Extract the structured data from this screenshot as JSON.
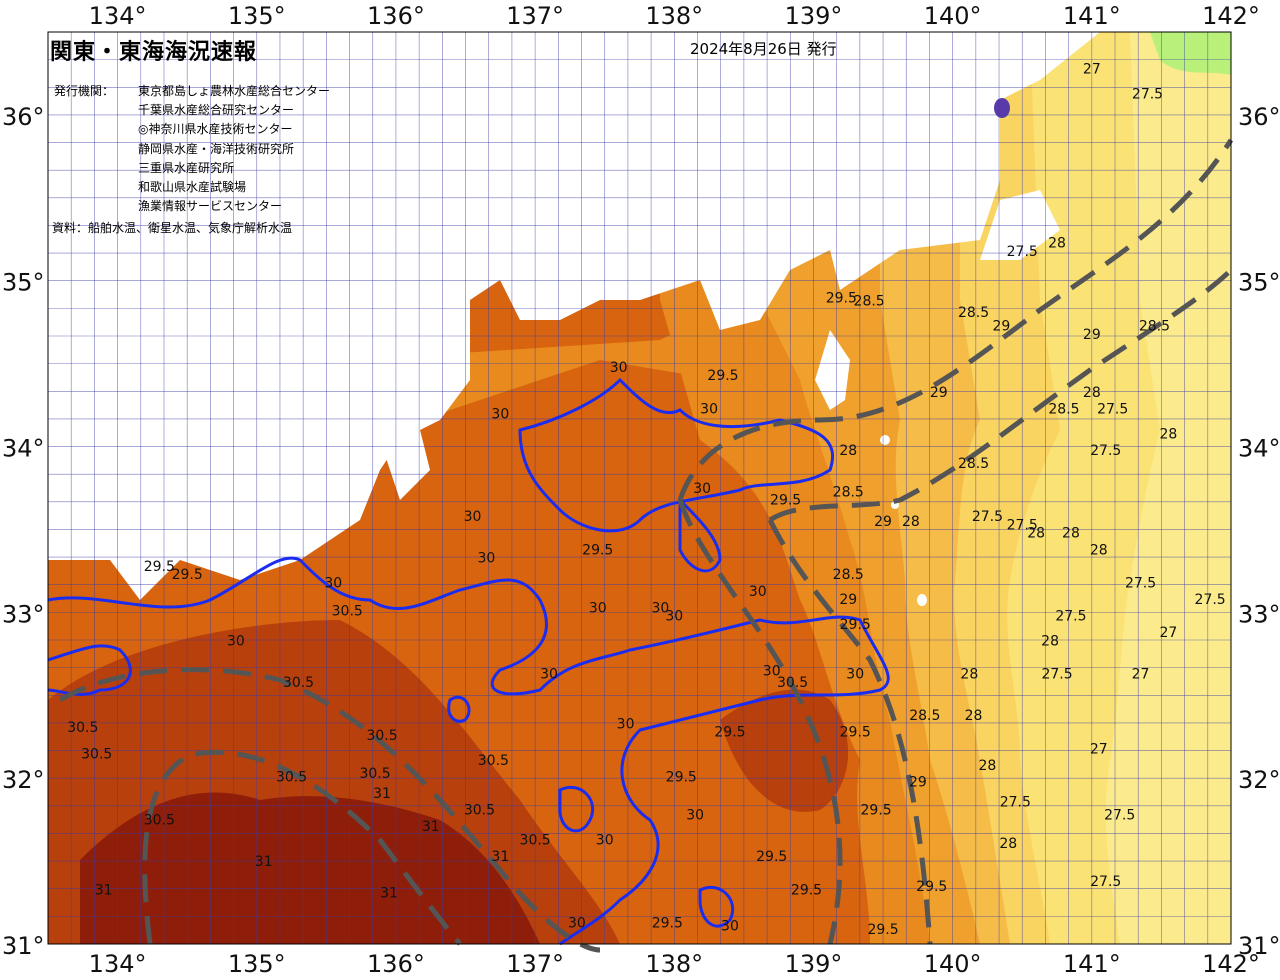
{
  "header": {
    "title": "関東・東海海況速報",
    "issue_date": "2024年8月26日 発行",
    "org_label": "発行機関：",
    "organizations": [
      "東京都島しょ農林水産総合センター",
      "千葉県水産総合研究センター",
      "◎神奈川県水産技術センター",
      "静岡県水産・海洋技術研究所",
      "三重県水産研究所",
      "和歌山県水産試験場",
      "漁業情報サービスセンター"
    ],
    "source": "資料：船舶水温、衛星水温、気象庁解析水温"
  },
  "axes": {
    "lon_labels": [
      "134°",
      "135°",
      "136°",
      "137°",
      "138°",
      "139°",
      "140°",
      "141°",
      "142°"
    ],
    "lat_labels": [
      "36°",
      "35°",
      "34°",
      "33°",
      "32°",
      "31°"
    ]
  },
  "colors": {
    "t31": "#8e1e0a",
    "t305": "#b8400c",
    "t30": "#d8640f",
    "t295": "#e88a1e",
    "t29": "#f0a02c",
    "t285": "#f6bc48",
    "t28": "#f9d460",
    "t275": "#fbe274",
    "t27": "#fbeb8c",
    "green": "#b8f07a",
    "land": "#ffffff",
    "grid": "#3a3aa8",
    "isotherm_30": "#1a2cf0",
    "current_axis": "#555555"
  },
  "isotherm_labels": [
    {
      "t": "29.5",
      "lon": 134.3,
      "lat": 33.25
    },
    {
      "t": "29.5",
      "lon": 134.5,
      "lat": 33.2
    },
    {
      "t": "30",
      "lon": 134.85,
      "lat": 32.8
    },
    {
      "t": "30",
      "lon": 135.55,
      "lat": 33.15
    },
    {
      "t": "30.5",
      "lon": 135.65,
      "lat": 32.98
    },
    {
      "t": "30.5",
      "lon": 135.3,
      "lat": 32.55
    },
    {
      "t": "30.5",
      "lon": 133.75,
      "lat": 32.28
    },
    {
      "t": "30.5",
      "lon": 133.85,
      "lat": 32.12
    },
    {
      "t": "30.5",
      "lon": 134.3,
      "lat": 31.72
    },
    {
      "t": "30.5",
      "lon": 135.25,
      "lat": 31.98
    },
    {
      "t": "30.5",
      "lon": 135.9,
      "lat": 32.23
    },
    {
      "t": "30.5",
      "lon": 135.85,
      "lat": 32.0
    },
    {
      "t": "31",
      "lon": 135.9,
      "lat": 31.88
    },
    {
      "t": "31",
      "lon": 136.25,
      "lat": 31.68
    },
    {
      "t": "31",
      "lon": 135.05,
      "lat": 31.47
    },
    {
      "t": "31",
      "lon": 135.95,
      "lat": 31.28
    },
    {
      "t": "31",
      "lon": 133.9,
      "lat": 31.3
    },
    {
      "t": "30.5",
      "lon": 136.7,
      "lat": 32.08
    },
    {
      "t": "30.5",
      "lon": 136.6,
      "lat": 31.78
    },
    {
      "t": "31",
      "lon": 136.75,
      "lat": 31.5
    },
    {
      "t": "30.5",
      "lon": 137.0,
      "lat": 31.6
    },
    {
      "t": "30",
      "lon": 136.65,
      "lat": 33.3
    },
    {
      "t": "30",
      "lon": 136.55,
      "lat": 33.55
    },
    {
      "t": "30",
      "lon": 137.45,
      "lat": 33.0
    },
    {
      "t": "30",
      "lon": 137.9,
      "lat": 33.0
    },
    {
      "t": "30",
      "lon": 137.1,
      "lat": 32.6
    },
    {
      "t": "29.5",
      "lon": 137.45,
      "lat": 33.35
    },
    {
      "t": "30",
      "lon": 136.75,
      "lat": 34.17
    },
    {
      "t": "30",
      "lon": 137.6,
      "lat": 34.45
    },
    {
      "t": "30",
      "lon": 138.25,
      "lat": 34.2
    },
    {
      "t": "29.5",
      "lon": 138.35,
      "lat": 34.4
    },
    {
      "t": "30",
      "lon": 138.2,
      "lat": 33.72
    },
    {
      "t": "30",
      "lon": 138.6,
      "lat": 33.1
    },
    {
      "t": "30",
      "lon": 138.7,
      "lat": 32.62
    },
    {
      "t": "30.5",
      "lon": 138.85,
      "lat": 32.55
    },
    {
      "t": "30",
      "lon": 139.3,
      "lat": 32.6
    },
    {
      "t": "30",
      "lon": 138.0,
      "lat": 32.95
    },
    {
      "t": "30",
      "lon": 137.65,
      "lat": 32.3
    },
    {
      "t": "29.5",
      "lon": 138.4,
      "lat": 32.25
    },
    {
      "t": "29.5",
      "lon": 138.05,
      "lat": 31.98
    },
    {
      "t": "30",
      "lon": 137.5,
      "lat": 31.6
    },
    {
      "t": "30",
      "lon": 138.15,
      "lat": 31.75
    },
    {
      "t": "29.5",
      "lon": 138.7,
      "lat": 31.5
    },
    {
      "t": "29.5",
      "lon": 138.95,
      "lat": 31.3
    },
    {
      "t": "29.5",
      "lon": 137.95,
      "lat": 31.1
    },
    {
      "t": "30",
      "lon": 137.3,
      "lat": 31.1
    },
    {
      "t": "30",
      "lon": 138.4,
      "lat": 31.08
    },
    {
      "t": "29.5",
      "lon": 139.3,
      "lat": 32.25
    },
    {
      "t": "29.5",
      "lon": 139.45,
      "lat": 31.78
    },
    {
      "t": "29.5",
      "lon": 139.5,
      "lat": 31.06
    },
    {
      "t": "29.5",
      "lon": 139.85,
      "lat": 31.32
    },
    {
      "t": "29",
      "lon": 139.75,
      "lat": 31.95
    },
    {
      "t": "29.5",
      "lon": 138.8,
      "lat": 33.65
    },
    {
      "t": "28.5",
      "lon": 139.25,
      "lat": 33.2
    },
    {
      "t": "29",
      "lon": 139.25,
      "lat": 33.05
    },
    {
      "t": "29.5",
      "lon": 139.3,
      "lat": 32.9
    },
    {
      "t": "28.5",
      "lon": 139.8,
      "lat": 32.35
    },
    {
      "t": "28",
      "lon": 140.12,
      "lat": 32.6
    },
    {
      "t": "28",
      "lon": 140.15,
      "lat": 32.35
    },
    {
      "t": "28",
      "lon": 140.25,
      "lat": 32.05
    },
    {
      "t": "29.5",
      "lon": 139.2,
      "lat": 34.87
    },
    {
      "t": "28.5",
      "lon": 139.4,
      "lat": 34.85
    },
    {
      "t": "29",
      "lon": 139.9,
      "lat": 34.3
    },
    {
      "t": "28.5",
      "lon": 140.15,
      "lat": 34.78
    },
    {
      "t": "29",
      "lon": 140.35,
      "lat": 34.7
    },
    {
      "t": "28",
      "lon": 139.25,
      "lat": 33.95
    },
    {
      "t": "28.5",
      "lon": 139.25,
      "lat": 33.7
    },
    {
      "t": "29",
      "lon": 139.5,
      "lat": 33.52
    },
    {
      "t": "28",
      "lon": 139.7,
      "lat": 33.52
    },
    {
      "t": "28.5",
      "lon": 140.15,
      "lat": 33.87
    },
    {
      "t": "27.5",
      "lon": 140.25,
      "lat": 33.55
    },
    {
      "t": "27.5",
      "lon": 140.5,
      "lat": 33.5
    },
    {
      "t": "27.5",
      "lon": 140.5,
      "lat": 35.15
    },
    {
      "t": "28",
      "lon": 140.75,
      "lat": 35.2
    },
    {
      "t": "29",
      "lon": 141.0,
      "lat": 34.65
    },
    {
      "t": "28.5",
      "lon": 140.8,
      "lat": 34.2
    },
    {
      "t": "28",
      "lon": 141.0,
      "lat": 34.3
    },
    {
      "t": "27.5",
      "lon": 141.15,
      "lat": 34.2
    },
    {
      "t": "27.5",
      "lon": 141.1,
      "lat": 33.95
    },
    {
      "t": "28",
      "lon": 141.55,
      "lat": 34.05
    },
    {
      "t": "28.5",
      "lon": 141.45,
      "lat": 34.7
    },
    {
      "t": "27.5",
      "lon": 141.4,
      "lat": 36.1
    },
    {
      "t": "27",
      "lon": 141.0,
      "lat": 36.25
    },
    {
      "t": "28",
      "lon": 141.05,
      "lat": 33.35
    },
    {
      "t": "28",
      "lon": 140.85,
      "lat": 33.45
    },
    {
      "t": "27.5",
      "lon": 141.35,
      "lat": 33.15
    },
    {
      "t": "27.5",
      "lon": 141.85,
      "lat": 33.05
    },
    {
      "t": "27.5",
      "lon": 140.85,
      "lat": 32.95
    },
    {
      "t": "28",
      "lon": 140.7,
      "lat": 32.8
    },
    {
      "t": "27.5",
      "lon": 140.75,
      "lat": 32.6
    },
    {
      "t": "27",
      "lon": 141.35,
      "lat": 32.6
    },
    {
      "t": "27",
      "lon": 141.55,
      "lat": 32.85
    },
    {
      "t": "27",
      "lon": 141.05,
      "lat": 32.15
    },
    {
      "t": "27.5",
      "lon": 140.45,
      "lat": 31.83
    },
    {
      "t": "27.5",
      "lon": 141.2,
      "lat": 31.75
    },
    {
      "t": "28",
      "lon": 140.4,
      "lat": 31.58
    },
    {
      "t": "27.5",
      "lon": 141.1,
      "lat": 31.35
    },
    {
      "t": "28",
      "lon": 140.6,
      "lat": 33.45
    }
  ]
}
